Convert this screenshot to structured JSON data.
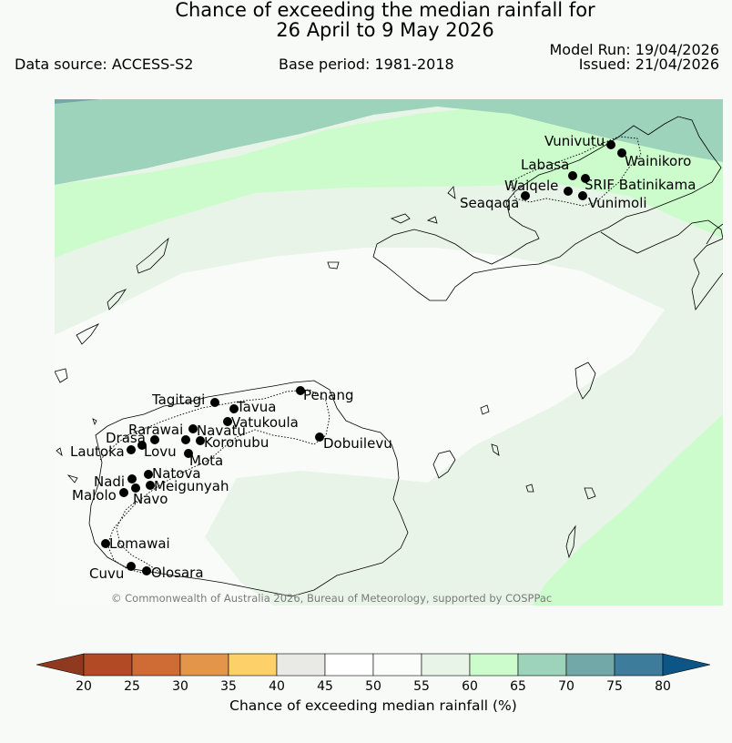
{
  "title": {
    "line1": "Chance of exceeding the median rainfall for",
    "line2": "26 April to 9 May 2026"
  },
  "info": {
    "data_source": "Data source: ACCESS-S2",
    "base_period": "Base period: 1981-2018",
    "model_run": "Model Run: 19/04/2026",
    "issued": "Issued: 21/04/2026"
  },
  "map": {
    "copyright": "© Commonwealth of Australia 2026, Bureau of Meteorology, supported by COSPPac",
    "places": [
      "Vunivutu",
      "Wainikoro",
      "Labasa",
      "SRIF Batinikama",
      "Waiqele",
      "Seaqaqa",
      "Vunimoli",
      "Tagitagi",
      "Tavua",
      "Penang",
      "Vatukoula",
      "Rarawai",
      "Navatu",
      "Drasa",
      "Koronubu",
      "Lautoka",
      "Lovu",
      "Mota",
      "Dobuilevu",
      "Natova",
      "Nadi",
      "Meigunyah",
      "Malolo",
      "Navo",
      "Lomawai",
      "Cuvu",
      "Olosara"
    ]
  },
  "legend": {
    "title": "Chance of exceeding median rainfall (%)",
    "ticks": [
      "20",
      "25",
      "30",
      "35",
      "40",
      "45",
      "50",
      "55",
      "60",
      "65",
      "70",
      "75",
      "80"
    ],
    "colors": {
      "below_20": "#8f3a1f",
      "c20_25": "#b34a26",
      "c25_30": "#cf6b35",
      "c30_35": "#e3964a",
      "c35_40": "#fdd069",
      "c40_45": "#e9e9e6",
      "c45_50": "#ffffff",
      "c50_55": "#fbfdfb",
      "c55_60": "#e8f4e8",
      "c60_65": "#ccfccc",
      "c65_70": "#9dd2bb",
      "c70_75": "#73a8a8",
      "c75_80": "#3e7c9c",
      "above_80": "#0d5586"
    }
  }
}
